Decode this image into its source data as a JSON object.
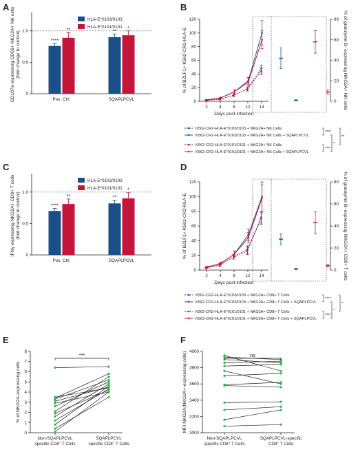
{
  "colors": {
    "blue": "#1b4f8a",
    "red": "#c4163a",
    "green": "#33b34a",
    "axis": "#222222"
  },
  "panel_labels": [
    "A",
    "B",
    "C",
    "D",
    "E",
    "F"
  ],
  "chart_data": [
    {
      "id": "A",
      "type": "bar",
      "categories": [
        "Pos. Ctrl.",
        "SQAPLPCVL"
      ],
      "ylabel": "CD107a expressing CD56+ NKG2A+ NK cells (fold change to control)",
      "ylim": [
        0,
        1.25
      ],
      "yticks": [
        "0",
        "0.5",
        "1.0"
      ],
      "reference_line": 1.0,
      "legend": "top-right",
      "series": [
        {
          "name": "HLA-E*0103/0103",
          "color": "#1b4f8a",
          "values": [
            0.76,
            0.9
          ],
          "errors": [
            0.04,
            0.05
          ],
          "sig": [
            "****",
            "**"
          ]
        },
        {
          "name": "HLA-E*0101/0101",
          "color": "#c4163a",
          "values": [
            0.89,
            0.93
          ],
          "errors": [
            0.08,
            0.07
          ],
          "sig": [
            "**",
            "*"
          ]
        }
      ]
    },
    {
      "id": "B",
      "type": "line",
      "x": [
        "2",
        "4",
        "8",
        "12",
        "14"
      ],
      "xlabel": "Days post infection",
      "ylabel": "% of BZLF1+ K562-CR2-HLA-E",
      "ylim": [
        0,
        120
      ],
      "yticks": [
        "0",
        "20",
        "40",
        "60",
        "80",
        "100",
        "120"
      ],
      "right_ylabel": "% of granzyme B- expressing NKG2A+ NK cells",
      "right_ylim": [
        0,
        80
      ],
      "right_yticks": [
        "0",
        "20",
        "40",
        "60",
        "80"
      ],
      "series": [
        {
          "name": "K562-CR2-HLA-E*0103/0103 + NKG2A+ NK Cells",
          "color": "#1b4f8a",
          "dashed": true,
          "values": [
            1.5,
            3,
            9,
            18,
            48
          ],
          "errors": [
            0.5,
            1,
            2,
            3,
            5
          ]
        },
        {
          "name": "K562-CR2-HLA-E*0103/0103 + NKG2A+ NK Cells + SQAPLPCVL",
          "color": "#1b4f8a",
          "dashed": false,
          "values": [
            2,
            5,
            14,
            30,
            100
          ],
          "errors": [
            0.5,
            1,
            3,
            5,
            18
          ]
        },
        {
          "name": "K562-CR2-HLA-E*0101/0101 + NKG2A+ NK Cells",
          "color": "#c4163a",
          "dashed": true,
          "values": [
            1.5,
            3,
            9,
            18,
            44
          ],
          "errors": [
            0.5,
            1,
            2,
            3,
            5
          ]
        },
        {
          "name": "K562-CR2-HLA-E*0101/0101 + NKG2A+ NK Cells + SQAPLPCVL",
          "color": "#c4163a",
          "dashed": false,
          "values": [
            2,
            5,
            14,
            28,
            90
          ],
          "errors": [
            0.5,
            1,
            3,
            5,
            13
          ]
        }
      ],
      "granzyme": [
        {
          "color": "#1b4f8a",
          "value": 42,
          "error": 10
        },
        {
          "color": "#1b4f8a",
          "value": 1,
          "error": 0.5
        },
        {
          "color": "#c4163a",
          "value": 58,
          "error": 11
        },
        {
          "color": "#c4163a",
          "value": 9,
          "error": 2
        }
      ],
      "legend_sig": [
        "****",
        "****",
        "*",
        "**"
      ]
    },
    {
      "id": "C",
      "type": "bar",
      "categories": [
        "Pos. Ctrl.",
        "SQAPLPCVL"
      ],
      "ylabel": "IFNγ expressing NKG2A+ CD8+ T cells (fold change to control)",
      "ylim": [
        0,
        1.25
      ],
      "yticks": [
        "0",
        "0.5",
        "1.0"
      ],
      "reference_line": 1.0,
      "legend": "top-right",
      "series": [
        {
          "name": "HLA-E*0103/0103",
          "color": "#1b4f8a",
          "values": [
            0.7,
            0.82
          ],
          "errors": [
            0.04,
            0.05
          ],
          "sig": [
            "****",
            "**"
          ]
        },
        {
          "name": "HLA-E*0101/0101",
          "color": "#c4163a",
          "values": [
            0.81,
            0.9
          ],
          "errors": [
            0.08,
            0.09
          ],
          "sig": [
            "**",
            "*"
          ]
        }
      ]
    },
    {
      "id": "D",
      "type": "line",
      "x": [
        "2",
        "4",
        "8",
        "12",
        "14"
      ],
      "xlabel": "Days post infection",
      "ylabel": "% of BZLF1+ K562-CR2-HLA-E",
      "ylim": [
        0,
        120
      ],
      "yticks": [
        "0",
        "20",
        "40",
        "60",
        "80",
        "100",
        "120"
      ],
      "right_ylabel": "% of granzyme B- expressing NKG2A+ CD8+ T cells",
      "right_ylim": [
        0,
        80
      ],
      "right_yticks": [
        "0",
        "20",
        "40",
        "60",
        "80"
      ],
      "series": [
        {
          "name": "K562-CR2-HLA-E*0103/0103 + NKG2A+ CD8+ T Cells",
          "color": "#1b4f8a",
          "dashed": true,
          "values": [
            3,
            7,
            18,
            28,
            72
          ],
          "errors": [
            1,
            2,
            3,
            5,
            8
          ]
        },
        {
          "name": "K562-CR2-HLA-E*0103/0103 + NKG2A+ CD8+ T Cells + SQAPLPCVL",
          "color": "#1b4f8a",
          "dashed": false,
          "values": [
            4,
            9,
            22,
            48,
            100
          ],
          "errors": [
            1,
            2,
            4,
            8,
            20
          ]
        },
        {
          "name": "K562-CR2-HLA-E*0101/0101 + NKG2A+ CD8+ T Cells",
          "color": "#c4163a",
          "dashed": true,
          "values": [
            3,
            7,
            18,
            26,
            70
          ],
          "errors": [
            1,
            2,
            3,
            5,
            8
          ]
        },
        {
          "name": "K562-CR2-HLA-E*0101/0101 + NKG2A+ CD8+ T Cells + SQAPLPCVL",
          "color": "#c4163a",
          "dashed": false,
          "values": [
            4,
            9,
            22,
            44,
            98
          ],
          "errors": [
            1,
            2,
            4,
            7,
            18
          ]
        }
      ],
      "granzyme": [
        {
          "color": "#1b4f8a",
          "value": 28,
          "error": 5
        },
        {
          "color": "#1b4f8a",
          "value": 1,
          "error": 0.5
        },
        {
          "color": "#c4163a",
          "value": 43,
          "error": 10
        },
        {
          "color": "#c4163a",
          "value": 4,
          "error": 1
        }
      ],
      "legend_sig": [
        "****",
        "****",
        "*",
        "*"
      ]
    },
    {
      "id": "E",
      "type": "scatter",
      "categories": [
        "Non-SQAPLPCVL specific CD8+ T Cells",
        "SQAPLPCVL specific CD8+ T Cells"
      ],
      "ylabel": "% of NKG2A-expressing cells",
      "ylim": [
        0,
        8
      ],
      "yticks": [
        "0",
        "1",
        "2",
        "3",
        "4",
        "5",
        "6",
        "7",
        "8"
      ],
      "significance": "***",
      "color": "#33b34a",
      "pairs": [
        [
          0.1,
          4.0
        ],
        [
          0.4,
          3.5
        ],
        [
          0.8,
          4.6
        ],
        [
          1.2,
          4.3
        ],
        [
          1.6,
          4.8
        ],
        [
          1.9,
          4.2
        ],
        [
          2.1,
          5.5
        ],
        [
          2.6,
          5.0
        ],
        [
          2.9,
          4.0
        ],
        [
          3.1,
          4.5
        ],
        [
          3.3,
          5.2
        ],
        [
          3.4,
          5.8
        ],
        [
          3.5,
          4.4
        ],
        [
          6.4,
          6.5
        ]
      ]
    },
    {
      "id": "F",
      "type": "scatter",
      "categories": [
        "Non-SQAPLPCVL specific CD8+ T Cells",
        "SQAPLPCVL-specific CD8+ T Cells"
      ],
      "ylabel": "MFI NKG2A(NKG2A+-expressing cells)",
      "ylim": [
        3000,
        4000
      ],
      "yticks": [
        "3000",
        "3200",
        "3400",
        "3600",
        "3800",
        "4000"
      ],
      "significance": "ns",
      "color": "#33b34a",
      "pairs": [
        [
          3080,
          3100
        ],
        [
          3160,
          3280
        ],
        [
          3280,
          3320
        ],
        [
          3370,
          3380
        ],
        [
          3580,
          3560
        ],
        [
          3590,
          3620
        ],
        [
          3700,
          3730
        ],
        [
          3760,
          3600
        ],
        [
          3820,
          3840
        ],
        [
          3860,
          3880
        ],
        [
          3900,
          3860
        ],
        [
          3930,
          3900
        ],
        [
          3950,
          3760
        ]
      ]
    }
  ]
}
